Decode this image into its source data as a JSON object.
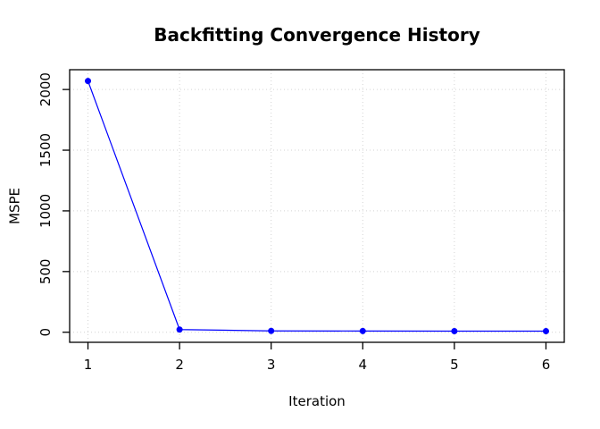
{
  "chart_data": {
    "type": "line",
    "title": "Backfitting Convergence History",
    "xlabel": "Iteration",
    "ylabel": "MSPE",
    "x": [
      1,
      2,
      3,
      4,
      5,
      6
    ],
    "y": [
      2070,
      22,
      11,
      10,
      9,
      9
    ],
    "x_ticks": [
      "1",
      "2",
      "3",
      "4",
      "5",
      "6"
    ],
    "x_tick_values": [
      1,
      2,
      3,
      4,
      5,
      6
    ],
    "y_ticks": [
      "0",
      "500",
      "1000",
      "1500",
      "2000"
    ],
    "y_tick_values": [
      0,
      500,
      1000,
      1500,
      2000
    ],
    "xlim": [
      0.8,
      6.2
    ],
    "ylim": [
      -83,
      2163
    ],
    "grid": true,
    "grid_style": "dotted",
    "legend": "none",
    "line_color": "#0000FF",
    "point_color": "#0000FF",
    "grid_color": "#D3D3D3",
    "box_color": "#000000",
    "tick_color": "#000000"
  }
}
